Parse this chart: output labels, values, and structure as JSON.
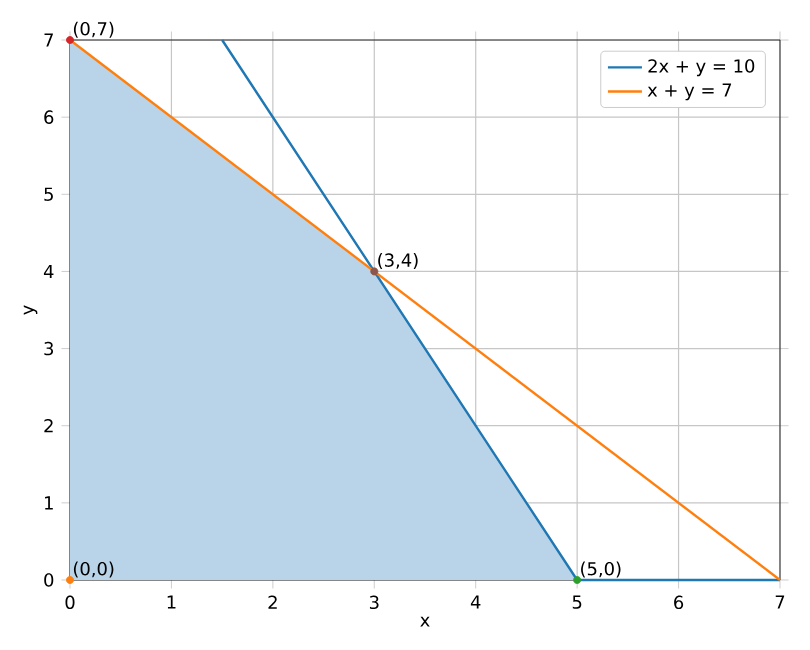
{
  "chart_data": {
    "type": "line",
    "xlabel": "x",
    "ylabel": "y",
    "xlim": [
      0,
      7
    ],
    "ylim": [
      0,
      7
    ],
    "xticks": [
      0,
      1,
      2,
      3,
      4,
      5,
      6,
      7
    ],
    "yticks": [
      0,
      1,
      2,
      3,
      4,
      5,
      6,
      7
    ],
    "grid": true,
    "legend": "top right",
    "series": [
      {
        "type": "area",
        "color": "#b9d4e8",
        "x": [
          0,
          3,
          5
        ],
        "values": [
          7,
          4,
          0
        ]
      },
      {
        "name": "2x + y = 10",
        "color": "#1f77b4",
        "x": [
          1.5,
          5,
          7
        ],
        "values": [
          7,
          0,
          0
        ]
      },
      {
        "name": "x + y = 7",
        "color": "#ff7f0e",
        "x": [
          0,
          7
        ],
        "values": [
          7,
          0
        ]
      },
      {
        "type": "scatter",
        "x": [
          0,
          0,
          5,
          3
        ],
        "values": [
          7,
          0,
          0,
          4
        ],
        "colors": [
          "#d62728",
          "#ff7f0e",
          "#2ca02c",
          "#8c564b"
        ]
      }
    ],
    "annotations": [
      {
        "text": "(0,7)",
        "x": 0,
        "y": 7
      },
      {
        "text": "(0,0)",
        "x": 0,
        "y": 0
      },
      {
        "text": "(5,0)",
        "x": 5,
        "y": 0
      },
      {
        "text": "(3,4)",
        "x": 3,
        "y": 4
      }
    ]
  }
}
